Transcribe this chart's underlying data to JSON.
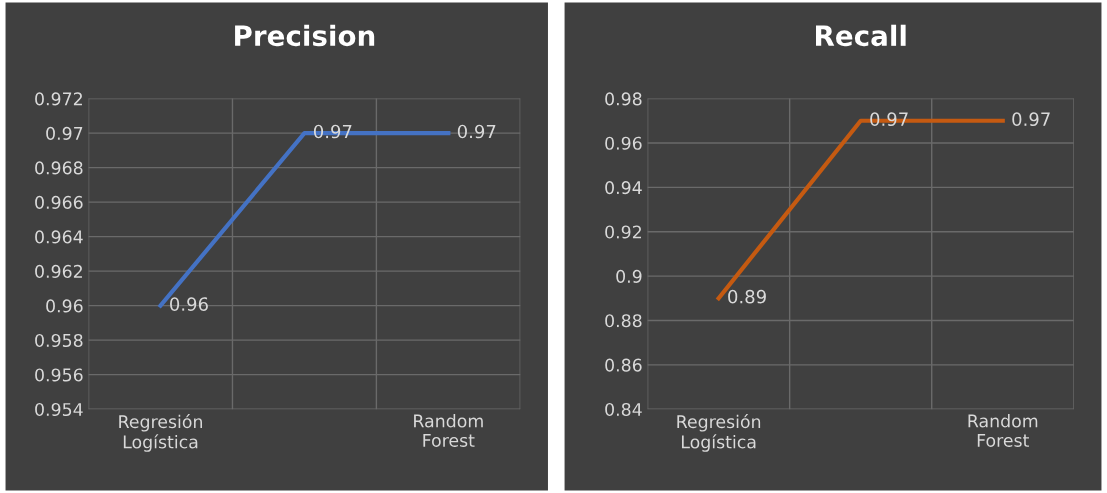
{
  "chart_data": [
    {
      "type": "line",
      "title": "Precision",
      "categories": [
        "Regresión\nLogística",
        null,
        "Random\nForest"
      ],
      "series": [
        {
          "color": "#4472c4",
          "values": [
            0.96,
            0.97,
            0.97
          ]
        }
      ],
      "ylim": [
        0.954,
        0.972
      ],
      "yticks": [
        0.954,
        0.956,
        0.958,
        0.96,
        0.962,
        0.964,
        0.966,
        0.968,
        0.97,
        0.972
      ],
      "grid": true,
      "data_labels": true
    },
    {
      "type": "line",
      "title": "Recall",
      "categories": [
        "Regresión\nLogística",
        null,
        "Random\nForest"
      ],
      "series": [
        {
          "color": "#c55a11",
          "values": [
            0.89,
            0.97,
            0.97
          ]
        }
      ],
      "ylim": [
        0.84,
        0.98
      ],
      "yticks": [
        0.84,
        0.86,
        0.88,
        0.9,
        0.92,
        0.94,
        0.96,
        0.98
      ],
      "grid": true,
      "data_labels": true
    }
  ]
}
